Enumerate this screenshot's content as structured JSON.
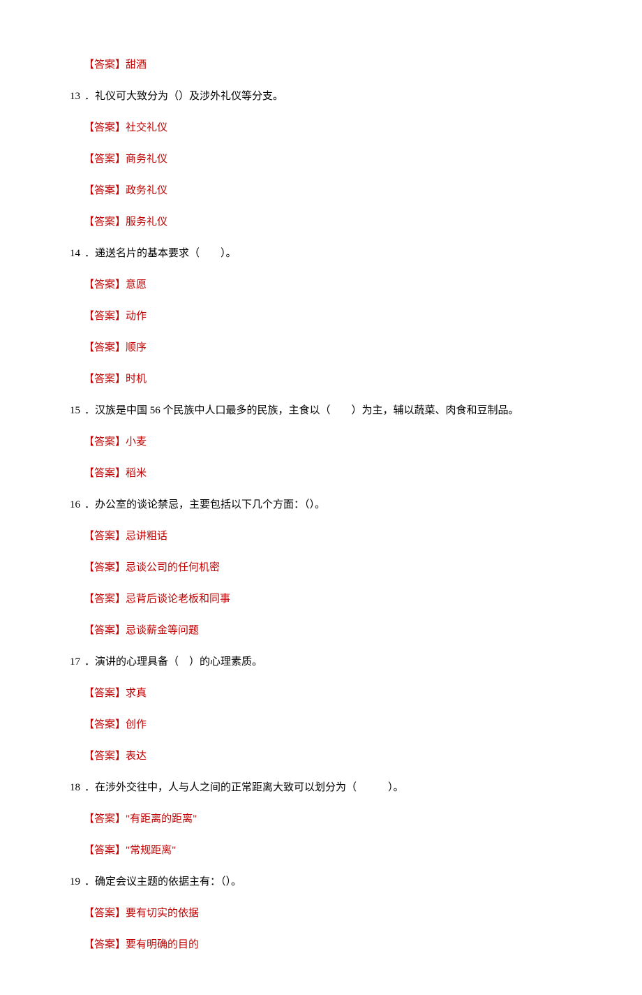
{
  "answer_label": "【答案】",
  "items": [
    {
      "type": "answer",
      "text": "甜酒"
    },
    {
      "type": "question",
      "num": "13",
      "text": "．礼仪可大致分为（）及涉外礼仪等分支。"
    },
    {
      "type": "answer",
      "text": "社交礼仪"
    },
    {
      "type": "answer",
      "text": "商务礼仪"
    },
    {
      "type": "answer",
      "text": "政务礼仪"
    },
    {
      "type": "answer",
      "text": "服务礼仪"
    },
    {
      "type": "question",
      "num": "14",
      "text": "．递送名片的基本要求（　　）。"
    },
    {
      "type": "answer",
      "text": "意愿"
    },
    {
      "type": "answer",
      "text": "动作"
    },
    {
      "type": "answer",
      "text": "顺序"
    },
    {
      "type": "answer",
      "text": "时机"
    },
    {
      "type": "question",
      "num": "15",
      "text": "．汉族是中国 56 个民族中人口最多的民族，主食以（　　）为主，辅以蔬菜、肉食和豆制品。"
    },
    {
      "type": "answer",
      "text": "小麦"
    },
    {
      "type": "answer",
      "text": "稻米"
    },
    {
      "type": "question",
      "num": "16",
      "text": "．办公室的谈论禁忌，主要包括以下几个方面：（）。"
    },
    {
      "type": "answer",
      "text": "忌讲粗话"
    },
    {
      "type": "answer",
      "text": "忌谈公司的任何机密"
    },
    {
      "type": "answer",
      "text": "忌背后谈论老板和同事"
    },
    {
      "type": "answer",
      "text": "忌谈薪金等问题"
    },
    {
      "type": "question",
      "num": "17",
      "text": "．演讲的心理具备（　）的心理素质。"
    },
    {
      "type": "answer",
      "text": "求真"
    },
    {
      "type": "answer",
      "text": "创作"
    },
    {
      "type": "answer",
      "text": "表达"
    },
    {
      "type": "question",
      "num": "18",
      "text": "．在涉外交往中，人与人之间的正常距离大致可以划分为（　　　）。"
    },
    {
      "type": "answer",
      "text": "\"有距离的距离\""
    },
    {
      "type": "answer",
      "text": "\"常规距离\""
    },
    {
      "type": "question",
      "num": "19",
      "text": "．确定会议主题的依据主有：（）。"
    },
    {
      "type": "answer",
      "text": "要有切实的依据"
    },
    {
      "type": "answer",
      "text": "要有明确的目的"
    }
  ]
}
